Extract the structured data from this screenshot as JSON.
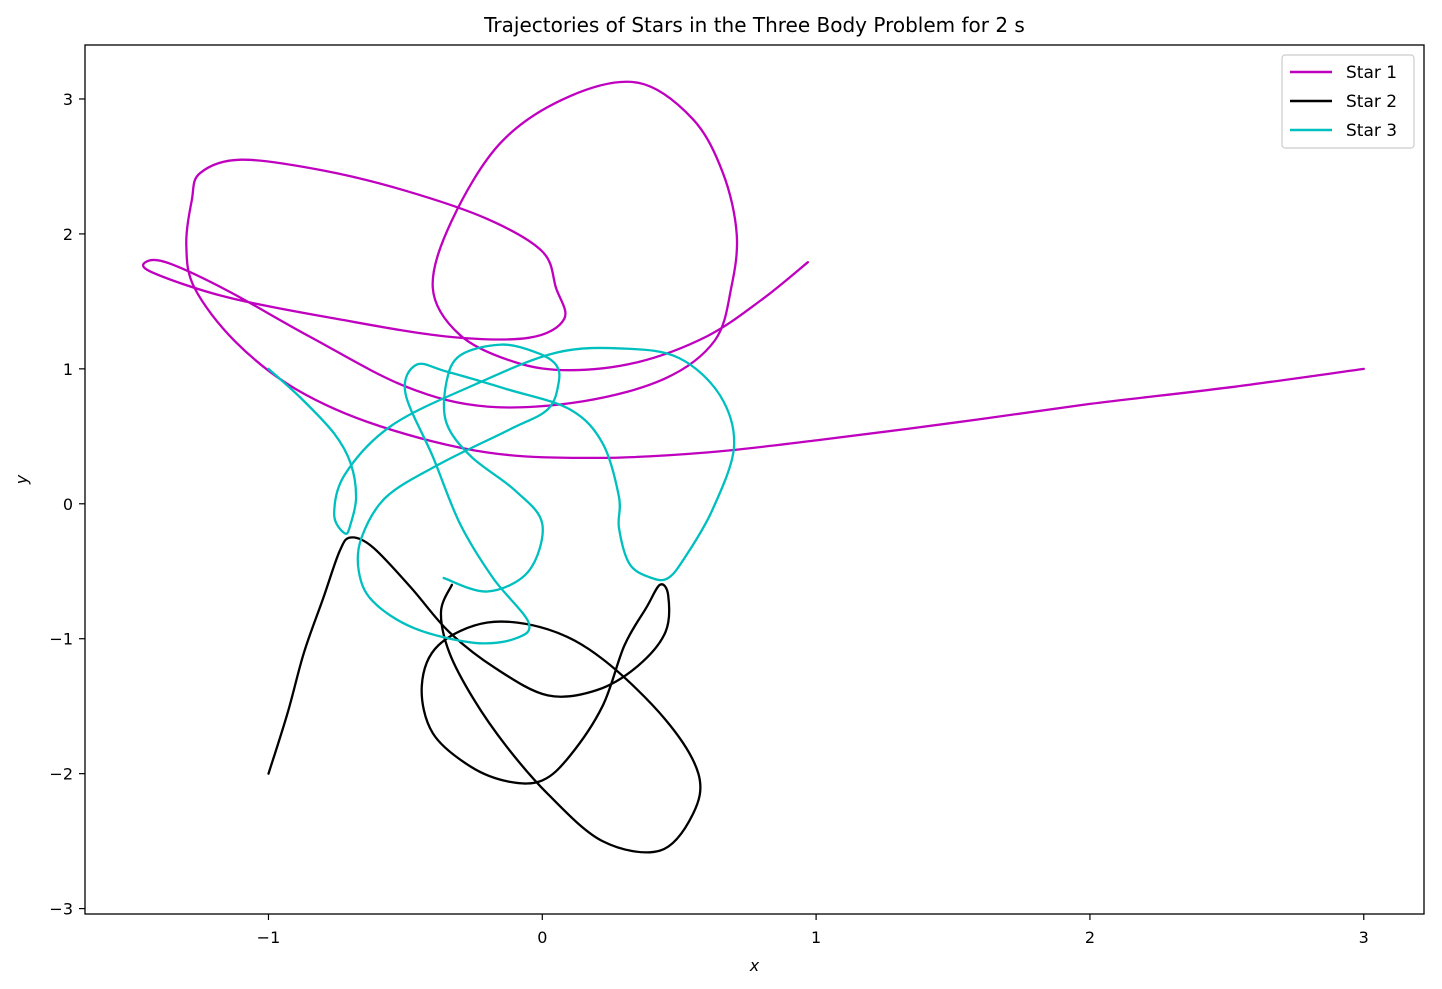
{
  "chart_data": {
    "type": "line",
    "title": "Trajectories of Stars in the Three Body Problem for 2 s",
    "xlabel": "x",
    "ylabel": "y",
    "xlim": [
      -1.67,
      3.22
    ],
    "ylim": [
      -3.04,
      3.4
    ],
    "xticks": [
      -1,
      0,
      1,
      2,
      3
    ],
    "yticks": [
      -3,
      -2,
      -1,
      0,
      1,
      2,
      3
    ],
    "xtick_labels": [
      "−1",
      "0",
      "1",
      "2",
      "3"
    ],
    "ytick_labels": [
      "−3",
      "−2",
      "−1",
      "0",
      "1",
      "2",
      "3"
    ],
    "grid": false,
    "legend_position": "top-right",
    "series": [
      {
        "name": "Star 1",
        "color": "#bf00bf",
        "points": [
          [
            3.0,
            1.0
          ],
          [
            2.5,
            0.86
          ],
          [
            2.0,
            0.74
          ],
          [
            1.5,
            0.6
          ],
          [
            1.0,
            0.47
          ],
          [
            0.6,
            0.38
          ],
          [
            0.2,
            0.34
          ],
          [
            -0.2,
            0.38
          ],
          [
            -0.6,
            0.58
          ],
          [
            -0.9,
            0.85
          ],
          [
            -1.12,
            1.2
          ],
          [
            -1.27,
            1.6
          ],
          [
            -1.3,
            1.92
          ],
          [
            -1.28,
            2.25
          ],
          [
            -1.25,
            2.45
          ],
          [
            -1.1,
            2.55
          ],
          [
            -0.8,
            2.47
          ],
          [
            -0.5,
            2.32
          ],
          [
            -0.2,
            2.11
          ],
          [
            0.0,
            1.87
          ],
          [
            0.05,
            1.6
          ],
          [
            0.08,
            1.37
          ],
          [
            -0.05,
            1.23
          ],
          [
            -0.35,
            1.24
          ],
          [
            -0.75,
            1.37
          ],
          [
            -1.15,
            1.53
          ],
          [
            -1.43,
            1.72
          ],
          [
            -1.44,
            1.8
          ],
          [
            -1.36,
            1.78
          ],
          [
            -1.15,
            1.58
          ],
          [
            -0.85,
            1.24
          ],
          [
            -0.5,
            0.87
          ],
          [
            -0.2,
            0.72
          ],
          [
            0.15,
            0.76
          ],
          [
            0.45,
            0.93
          ],
          [
            0.63,
            1.21
          ],
          [
            0.69,
            1.6
          ],
          [
            0.71,
            2.0
          ],
          [
            0.66,
            2.45
          ],
          [
            0.55,
            2.85
          ],
          [
            0.35,
            3.12
          ],
          [
            0.1,
            3.02
          ],
          [
            -0.15,
            2.68
          ],
          [
            -0.33,
            2.1
          ],
          [
            -0.4,
            1.6
          ],
          [
            -0.3,
            1.25
          ],
          [
            -0.1,
            1.05
          ],
          [
            0.1,
            0.99
          ],
          [
            0.35,
            1.05
          ],
          [
            0.6,
            1.24
          ],
          [
            0.8,
            1.51
          ],
          [
            0.97,
            1.79
          ]
        ]
      },
      {
        "name": "Star 2",
        "color": "#000000",
        "points": [
          [
            -1.0,
            -2.0
          ],
          [
            -0.93,
            -1.55
          ],
          [
            -0.87,
            -1.1
          ],
          [
            -0.8,
            -0.7
          ],
          [
            -0.74,
            -0.35
          ],
          [
            -0.7,
            -0.25
          ],
          [
            -0.62,
            -0.32
          ],
          [
            -0.48,
            -0.62
          ],
          [
            -0.34,
            -0.95
          ],
          [
            -0.17,
            -1.22
          ],
          [
            0.02,
            -1.42
          ],
          [
            0.2,
            -1.38
          ],
          [
            0.35,
            -1.2
          ],
          [
            0.45,
            -0.95
          ],
          [
            0.46,
            -0.68
          ],
          [
            0.43,
            -0.6
          ],
          [
            0.38,
            -0.77
          ],
          [
            0.3,
            -1.05
          ],
          [
            0.22,
            -1.5
          ],
          [
            0.1,
            -1.87
          ],
          [
            0.0,
            -2.05
          ],
          [
            -0.12,
            -2.06
          ],
          [
            -0.26,
            -1.95
          ],
          [
            -0.4,
            -1.7
          ],
          [
            -0.44,
            -1.35
          ],
          [
            -0.38,
            -1.05
          ],
          [
            -0.2,
            -0.88
          ],
          [
            0.02,
            -0.93
          ],
          [
            0.22,
            -1.15
          ],
          [
            0.45,
            -1.6
          ],
          [
            0.57,
            -2.0
          ],
          [
            0.55,
            -2.3
          ],
          [
            0.43,
            -2.57
          ],
          [
            0.22,
            -2.5
          ],
          [
            0.02,
            -2.15
          ],
          [
            -0.13,
            -1.8
          ],
          [
            -0.25,
            -1.45
          ],
          [
            -0.34,
            -1.1
          ],
          [
            -0.37,
            -0.8
          ],
          [
            -0.33,
            -0.6
          ]
        ]
      },
      {
        "name": "Star 3",
        "color": "#00bfbf",
        "points": [
          [
            -1.0,
            1.0
          ],
          [
            -0.88,
            0.78
          ],
          [
            -0.76,
            0.52
          ],
          [
            -0.7,
            0.3
          ],
          [
            -0.68,
            0.05
          ],
          [
            -0.7,
            -0.15
          ],
          [
            -0.72,
            -0.22
          ],
          [
            -0.76,
            -0.08
          ],
          [
            -0.72,
            0.22
          ],
          [
            -0.55,
            0.58
          ],
          [
            -0.25,
            0.88
          ],
          [
            0.05,
            1.12
          ],
          [
            0.3,
            1.15
          ],
          [
            0.5,
            1.08
          ],
          [
            0.65,
            0.8
          ],
          [
            0.7,
            0.42
          ],
          [
            0.62,
            -0.05
          ],
          [
            0.52,
            -0.4
          ],
          [
            0.46,
            -0.55
          ],
          [
            0.4,
            -0.55
          ],
          [
            0.32,
            -0.45
          ],
          [
            0.28,
            -0.18
          ],
          [
            0.28,
            0.05
          ],
          [
            0.22,
            0.45
          ],
          [
            0.1,
            0.7
          ],
          [
            -0.13,
            0.85
          ],
          [
            -0.35,
            0.98
          ],
          [
            -0.46,
            1.03
          ],
          [
            -0.5,
            0.82
          ],
          [
            -0.4,
            0.35
          ],
          [
            -0.3,
            -0.15
          ],
          [
            -0.18,
            -0.55
          ],
          [
            -0.05,
            -0.88
          ],
          [
            -0.1,
            -1.0
          ],
          [
            -0.25,
            -1.03
          ],
          [
            -0.47,
            -0.92
          ],
          [
            -0.62,
            -0.72
          ],
          [
            -0.67,
            -0.5
          ],
          [
            -0.66,
            -0.25
          ],
          [
            -0.57,
            0.05
          ],
          [
            -0.37,
            0.3
          ],
          [
            -0.12,
            0.55
          ],
          [
            0.02,
            0.7
          ],
          [
            0.06,
            0.9
          ],
          [
            0.05,
            1.03
          ],
          [
            -0.02,
            1.12
          ],
          [
            -0.15,
            1.18
          ],
          [
            -0.3,
            1.1
          ],
          [
            -0.35,
            0.9
          ],
          [
            -0.35,
            0.6
          ],
          [
            -0.26,
            0.35
          ],
          [
            -0.1,
            0.1
          ],
          [
            0.0,
            -0.15
          ],
          [
            -0.05,
            -0.5
          ],
          [
            -0.2,
            -0.65
          ],
          [
            -0.36,
            -0.55
          ]
        ]
      }
    ]
  }
}
